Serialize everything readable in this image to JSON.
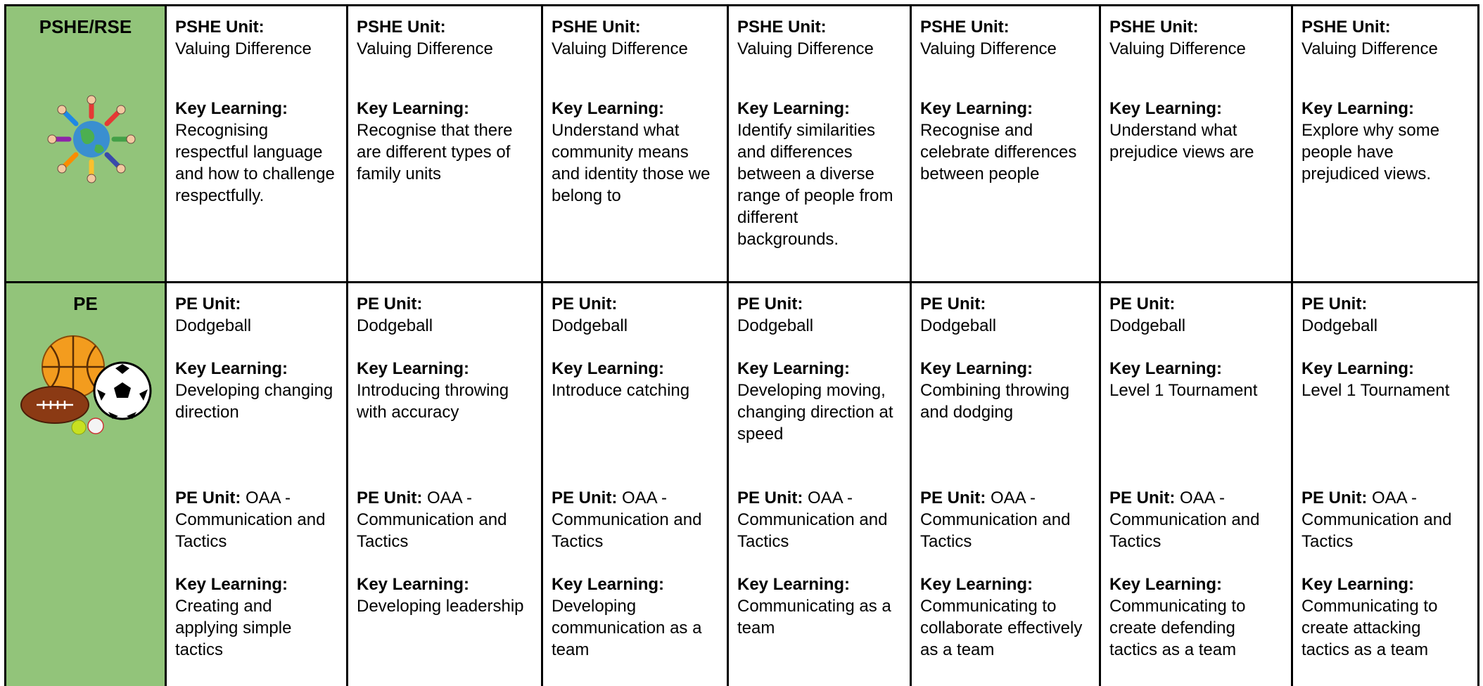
{
  "table": {
    "rows": [
      {
        "label": "PSHE/RSE",
        "cells": [
          {
            "blocks": [
              {
                "unit_label": "PSHE Unit:",
                "unit": "Valuing Difference",
                "key_label": "Key Learning:",
                "key": "Recognising respectful language and how to challenge respectfully."
              }
            ]
          },
          {
            "blocks": [
              {
                "unit_label": "PSHE Unit:",
                "unit": "Valuing Difference",
                "key_label": "Key Learning:",
                "key": "Recognise that there are different types of family units"
              }
            ]
          },
          {
            "blocks": [
              {
                "unit_label": "PSHE Unit:",
                "unit": "Valuing Difference",
                "key_label": "Key Learning:",
                "key": "Understand what community means and identity those we belong to"
              }
            ]
          },
          {
            "blocks": [
              {
                "unit_label": "PSHE Unit:",
                "unit": "Valuing Difference",
                "key_label": "Key Learning:",
                "key": "Identify similarities and differences between a diverse range of people from different backgrounds."
              }
            ]
          },
          {
            "blocks": [
              {
                "unit_label": "PSHE Unit:",
                "unit": "Valuing Difference",
                "key_label": "Key Learning:",
                "key": "Recognise and celebrate differences between people"
              }
            ]
          },
          {
            "blocks": [
              {
                "unit_label": "PSHE Unit:",
                "unit": "Valuing Difference",
                "key_label": "Key Learning:",
                "key": "Understand what prejudice views are"
              }
            ]
          },
          {
            "blocks": [
              {
                "unit_label": "PSHE Unit:",
                "unit": "Valuing Difference",
                "key_label": "Key Learning:",
                "key": "Explore why some people have prejudiced views."
              }
            ]
          }
        ]
      },
      {
        "label": "PE",
        "cells": [
          {
            "blocks": [
              {
                "unit_label": "PE Unit:",
                "unit": "Dodgeball",
                "key_label": "Key Learning:",
                "key": "Developing changing direction"
              },
              {
                "unit_label": "PE Unit:",
                "unit": "OAA - Communication and Tactics",
                "key_label": "Key Learning:",
                "key": "Creating and applying simple tactics"
              }
            ]
          },
          {
            "blocks": [
              {
                "unit_label": "PE Unit:",
                "unit": "Dodgeball",
                "key_label": "Key Learning:",
                "key": "Introducing throwing with accuracy"
              },
              {
                "unit_label": "PE Unit:",
                "unit": "OAA - Communication and Tactics",
                "key_label": "Key Learning:",
                "key": "Developing leadership"
              }
            ]
          },
          {
            "blocks": [
              {
                "unit_label": "PE Unit:",
                "unit": "Dodgeball",
                "key_label": "Key Learning:",
                "key": "Introduce catching"
              },
              {
                "unit_label": "PE Unit:",
                "unit": "OAA - Communication and Tactics",
                "key_label": "Key Learning:",
                "key": "Developing communication as a team"
              }
            ]
          },
          {
            "blocks": [
              {
                "unit_label": "PE Unit:",
                "unit": "Dodgeball",
                "key_label": "Key Learning:",
                "key": "Developing moving, changing direction at speed"
              },
              {
                "unit_label": "PE Unit:",
                "unit": "OAA - Communication and Tactics",
                "key_label": "Key Learning:",
                "key": "Communicating as a team"
              }
            ]
          },
          {
            "blocks": [
              {
                "unit_label": "PE Unit:",
                "unit": "Dodgeball",
                "key_label": "Key Learning:",
                "key": "Combining throwing and dodging"
              },
              {
                "unit_label": "PE Unit:",
                "unit": "OAA - Communication and Tactics",
                "key_label": "Key Learning:",
                "key": "Communicating to collaborate effectively as a team"
              }
            ]
          },
          {
            "blocks": [
              {
                "unit_label": "PE Unit:",
                "unit": "Dodgeball",
                "key_label": "Key Learning:",
                "key": "Level 1 Tournament"
              },
              {
                "unit_label": "PE Unit:",
                "unit": "OAA - Communication and Tactics",
                "key_label": "Key Learning:",
                "key": "Communicating to create defending tactics as a team"
              }
            ]
          },
          {
            "blocks": [
              {
                "unit_label": "PE Unit:",
                "unit": "Dodgeball",
                "key_label": "Key Learning:",
                "key": "Level 1 Tournament"
              },
              {
                "unit_label": "PE Unit:",
                "unit": "OAA - Communication and Tactics",
                "key_label": "Key Learning:",
                "key": "Communicating to create attacking tactics as a team"
              }
            ]
          }
        ]
      }
    ]
  }
}
